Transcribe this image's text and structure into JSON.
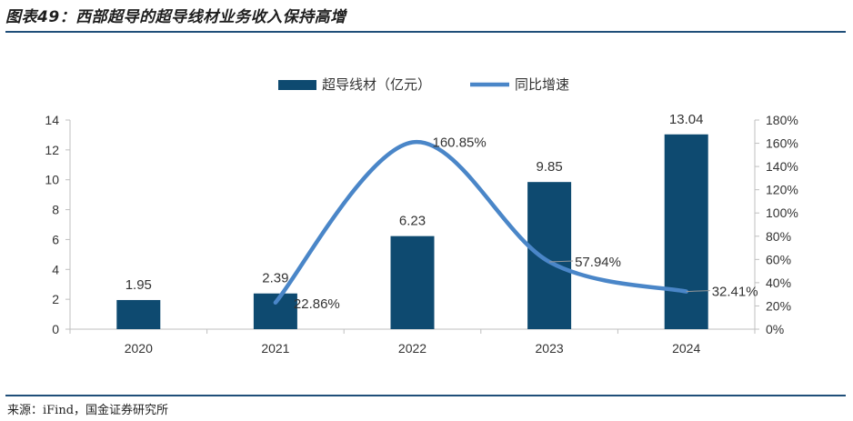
{
  "header": {
    "title": "图表49：西部超导的超导线材业务收入保持高增"
  },
  "footer": {
    "source": "来源：iFind，国金证券研究所"
  },
  "colors": {
    "bar": "#0e4a70",
    "line": "#4a86c8",
    "rule": "#1f4e79",
    "axis": "#bfbfbf",
    "text": "#333333"
  },
  "chart_data": {
    "type": "bar",
    "categories": [
      "2020",
      "2021",
      "2022",
      "2023",
      "2024"
    ],
    "series": [
      {
        "name": "超导线材（亿元）",
        "type": "bar",
        "axis": "left",
        "values": [
          1.95,
          2.39,
          6.23,
          9.85,
          13.04
        ],
        "labels": [
          "1.95",
          "2.39",
          "6.23",
          "9.85",
          "13.04"
        ]
      },
      {
        "name": "同比增速",
        "type": "line",
        "axis": "right",
        "smooth": true,
        "values": [
          null,
          22.86,
          160.85,
          57.94,
          32.41
        ],
        "labels": [
          "",
          "22.86%",
          "160.85%",
          "57.94%",
          "32.41%"
        ]
      }
    ],
    "y_left": {
      "ylim": [
        0,
        14
      ],
      "ticks": [
        "0",
        "2",
        "4",
        "6",
        "8",
        "10",
        "12",
        "14"
      ]
    },
    "y_right": {
      "ylim": [
        0,
        180
      ],
      "ticks": [
        "0%",
        "20%",
        "40%",
        "60%",
        "80%",
        "100%",
        "120%",
        "140%",
        "160%",
        "180%"
      ]
    },
    "legend": {
      "placement": "top-center"
    },
    "grid": false
  }
}
